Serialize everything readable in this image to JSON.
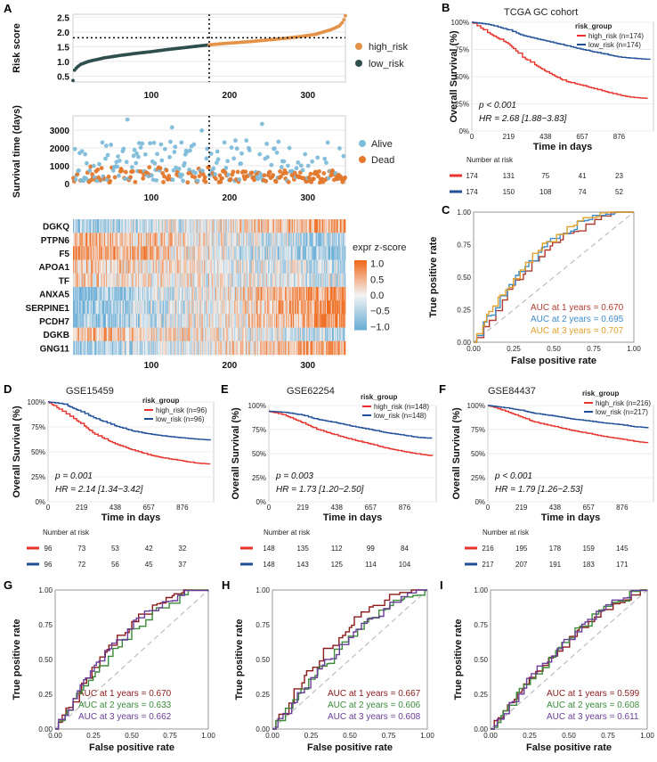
{
  "colors": {
    "high": "#e8322b",
    "low": "#1f4e98",
    "risk_high": "#e39247",
    "risk_low": "#2f4f4f",
    "alive": "#7fbcd9",
    "dead": "#e2782c",
    "auc_c": [
      "#b23a2f",
      "#3d8ccb",
      "#e0a02a"
    ],
    "auc_geo": [
      "#8b1a1a",
      "#3a8a3a",
      "#6a3d9a"
    ],
    "diag": "#bdbdbd",
    "heat_low": "#6baed6",
    "heat_mid": "#f3f3f3",
    "heat_high": "#f06a1c"
  },
  "panels": {
    "A": "A",
    "B": "B",
    "C": "C",
    "D": "D",
    "E": "E",
    "F": "F",
    "G": "G",
    "H": "H",
    "I": "I"
  },
  "chart_data": [
    {
      "id": "A_risk",
      "type": "line",
      "ylabel": "Risk score",
      "xlim": [
        0,
        348
      ],
      "ylim": [
        0.3,
        2.6
      ],
      "xticks": [
        "100",
        "200",
        "300"
      ],
      "yticks": [
        "0.5",
        "1.0",
        "1.5",
        "2.0",
        "2.5"
      ],
      "cutoff": 174,
      "threshold": 1.8,
      "legend": [
        "high_risk",
        "low_risk"
      ],
      "curve_x": [
        0,
        2,
        5,
        10,
        20,
        40,
        60,
        80,
        100,
        120,
        140,
        160,
        174,
        190,
        210,
        230,
        250,
        270,
        290,
        310,
        320,
        330,
        340,
        345,
        348
      ],
      "curve_y": [
        0.35,
        0.7,
        0.8,
        0.9,
        1.0,
        1.12,
        1.2,
        1.27,
        1.33,
        1.4,
        1.46,
        1.52,
        1.56,
        1.6,
        1.64,
        1.68,
        1.73,
        1.78,
        1.84,
        1.92,
        2.0,
        2.08,
        2.2,
        2.35,
        2.55
      ]
    },
    {
      "id": "A_surv",
      "type": "scatter",
      "ylabel": "Survival time (days)",
      "xlim": [
        0,
        348
      ],
      "ylim": [
        0,
        3800
      ],
      "xticks": [
        "100",
        "200",
        "300"
      ],
      "yticks": [
        "0",
        "1000",
        "2000",
        "3000"
      ],
      "cutoff": 174,
      "legend": [
        "Alive",
        "Dead"
      ]
    },
    {
      "id": "A_heat",
      "type": "heatmap",
      "genes": [
        "DGKQ",
        "PTPN6",
        "F5",
        "APOA1",
        "TF",
        "ANXA5",
        "SERPINE1",
        "PCDH7",
        "DGKB",
        "GNG11"
      ],
      "xticks": [
        "100",
        "200",
        "300"
      ],
      "legend_title": "expr z-score",
      "legend_ticks": [
        "1.0",
        "0.5",
        "0.0",
        "−0.5",
        "−1.0"
      ],
      "trend": [
        0.7,
        -0.6,
        -0.8,
        -0.4,
        -0.3,
        0.9,
        0.9,
        0.8,
        -0.5,
        0.8
      ]
    },
    {
      "id": "B",
      "type": "line",
      "title": "TCGA GC cohort",
      "ylabel": "Overall Survival (%)",
      "xlabel": "Time in days",
      "yticks": [
        "0%",
        "25%",
        "50%",
        "75%",
        "100%"
      ],
      "xticks": [
        "0",
        "219",
        "438",
        "657",
        "876"
      ],
      "xlim": [
        0,
        1080
      ],
      "legend_title": "risk_group",
      "legend": [
        "high_risk (n=174)",
        "low_risk (n=174)"
      ],
      "p": "p < 0.001",
      "hr": "HR = 2.68 [1.88−3.83]",
      "high": {
        "t": [
          0,
          100,
          219,
          300,
          438,
          550,
          657,
          750,
          876,
          950,
          1040
        ],
        "s": [
          1.0,
          0.9,
          0.8,
          0.68,
          0.55,
          0.46,
          0.42,
          0.38,
          0.33,
          0.31,
          0.3
        ]
      },
      "low": {
        "t": [
          0,
          100,
          219,
          300,
          438,
          550,
          657,
          750,
          876,
          950,
          1040
        ],
        "s": [
          1.0,
          0.98,
          0.93,
          0.88,
          0.83,
          0.79,
          0.75,
          0.72,
          0.68,
          0.67,
          0.66
        ]
      },
      "risk_title": "Number at risk",
      "risk_high": [
        "174",
        "131",
        "75",
        "41",
        "23"
      ],
      "risk_low": [
        "174",
        "150",
        "108",
        "74",
        "52"
      ]
    },
    {
      "id": "C",
      "type": "line",
      "xlabel": "False positive rate",
      "ylabel": "True positive rate",
      "ticks": [
        "0.00",
        "0.25",
        "0.50",
        "0.75",
        "1.00"
      ],
      "labels": [
        "AUC at 1 years = 0.670",
        "AUC at 2 years = 0.695",
        "AUC at 3 years = 0.707"
      ],
      "auc": [
        0.67,
        0.695,
        0.707
      ]
    },
    {
      "id": "D",
      "type": "line",
      "title": "GSE15459",
      "ylabel": "Overall Survival (%)",
      "xlabel": "Time in days",
      "yticks": [
        "0%",
        "25%",
        "50%",
        "75%",
        "100%"
      ],
      "xticks": [
        "0",
        "219",
        "438",
        "657",
        "876"
      ],
      "xlim": [
        0,
        1080
      ],
      "legend_title": "risk_group",
      "legend": [
        "high_risk (n=96)",
        "low_risk (n=96)"
      ],
      "p": "p = 0.001",
      "hr": "HR = 2.14 [1.34−3.42]",
      "high": {
        "t": [
          0,
          100,
          219,
          300,
          438,
          550,
          657,
          750,
          876,
          950,
          1040
        ],
        "s": [
          1.0,
          0.9,
          0.78,
          0.68,
          0.58,
          0.52,
          0.47,
          0.44,
          0.41,
          0.39,
          0.38
        ]
      },
      "low": {
        "t": [
          0,
          100,
          219,
          300,
          438,
          550,
          657,
          750,
          876,
          950,
          1040
        ],
        "s": [
          1.0,
          0.98,
          0.9,
          0.84,
          0.76,
          0.71,
          0.68,
          0.66,
          0.64,
          0.63,
          0.62
        ]
      },
      "risk_title": "Number at risk",
      "risk_high": [
        "96",
        "73",
        "53",
        "42",
        "32"
      ],
      "risk_low": [
        "96",
        "72",
        "56",
        "45",
        "37"
      ]
    },
    {
      "id": "E",
      "type": "line",
      "title": "GSE62254",
      "ylabel": "Overall Survival (%)",
      "xlabel": "Time in days",
      "yticks": [
        "0%",
        "25%",
        "50%",
        "75%",
        "100%"
      ],
      "xticks": [
        "0",
        "219",
        "438",
        "657",
        "876"
      ],
      "xlim": [
        0,
        1080
      ],
      "legend_title": "risk_group",
      "legend": [
        "high_risk (n=148)",
        "low_risk (n=148)"
      ],
      "p": "p = 0.003",
      "hr": "HR = 1.73 [1.20−2.50]",
      "high": {
        "t": [
          0,
          100,
          219,
          300,
          438,
          550,
          657,
          750,
          876,
          950,
          1040
        ],
        "s": [
          0.94,
          0.9,
          0.82,
          0.76,
          0.69,
          0.64,
          0.6,
          0.56,
          0.52,
          0.5,
          0.48
        ]
      },
      "low": {
        "t": [
          0,
          100,
          219,
          300,
          438,
          550,
          657,
          750,
          876,
          950,
          1040
        ],
        "s": [
          0.94,
          0.93,
          0.9,
          0.86,
          0.82,
          0.78,
          0.75,
          0.72,
          0.69,
          0.67,
          0.66
        ]
      },
      "risk_title": "Number at risk",
      "risk_high": [
        "148",
        "135",
        "112",
        "99",
        "84"
      ],
      "risk_low": [
        "148",
        "143",
        "125",
        "114",
        "104"
      ]
    },
    {
      "id": "F",
      "type": "line",
      "title": "GSE84437",
      "ylabel": "Overall Survival (%)",
      "xlabel": "Time in days",
      "yticks": [
        "0%",
        "25%",
        "50%",
        "75%",
        "100%"
      ],
      "xticks": [
        "0",
        "219",
        "438",
        "657",
        "876"
      ],
      "xlim": [
        0,
        1080
      ],
      "legend_title": "risk_group",
      "legend": [
        "high_risk (n=216)",
        "low_risk (n=217)"
      ],
      "p": "p < 0.001",
      "hr": "HR = 1.79 [1.26−2.53]",
      "high": {
        "t": [
          0,
          100,
          219,
          300,
          438,
          550,
          657,
          750,
          876,
          950,
          1040
        ],
        "s": [
          1.0,
          0.95,
          0.88,
          0.83,
          0.78,
          0.74,
          0.71,
          0.68,
          0.65,
          0.63,
          0.61
        ]
      },
      "low": {
        "t": [
          0,
          100,
          219,
          300,
          438,
          550,
          657,
          750,
          876,
          950,
          1040
        ],
        "s": [
          1.0,
          0.98,
          0.95,
          0.92,
          0.89,
          0.86,
          0.84,
          0.82,
          0.8,
          0.78,
          0.77
        ]
      },
      "risk_title": "Number at risk",
      "risk_high": [
        "216",
        "195",
        "178",
        "159",
        "145"
      ],
      "risk_low": [
        "217",
        "207",
        "191",
        "183",
        "171"
      ]
    },
    {
      "id": "G",
      "type": "line",
      "xlabel": "False positive rate",
      "ylabel": "True positive rate",
      "ticks": [
        "0.00",
        "0.25",
        "0.50",
        "0.75",
        "1.00"
      ],
      "labels": [
        "AUC at 1 years = 0.670",
        "AUC at 2 years = 0.633",
        "AUC at 3 years = 0.662"
      ],
      "auc": [
        0.67,
        0.633,
        0.662
      ]
    },
    {
      "id": "H",
      "type": "line",
      "xlabel": "False positive rate",
      "ylabel": "True positive rate",
      "ticks": [
        "0.00",
        "0.25",
        "0.50",
        "0.75",
        "1.00"
      ],
      "labels": [
        "AUC at 1 years = 0.667",
        "AUC at 2 years = 0.606",
        "AUC at 3 years = 0.608"
      ],
      "auc": [
        0.667,
        0.606,
        0.608
      ]
    },
    {
      "id": "I",
      "type": "line",
      "xlabel": "False positive rate",
      "ylabel": "True positive rate",
      "ticks": [
        "0.00",
        "0.25",
        "0.50",
        "0.75",
        "1.00"
      ],
      "labels": [
        "AUC at 1 years = 0.599",
        "AUC at 2 years = 0.608",
        "AUC at 3 years = 0.611"
      ],
      "auc": [
        0.599,
        0.608,
        0.611
      ]
    }
  ]
}
